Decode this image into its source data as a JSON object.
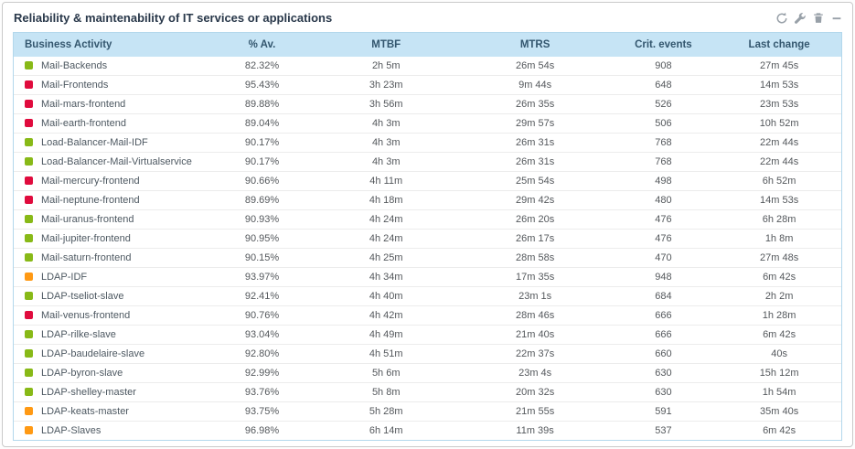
{
  "widget": {
    "title": "Reliability & maintenability of IT services or applications"
  },
  "status_colors": {
    "ok": "#88b917",
    "warning": "#ff9913",
    "critical": "#e00b3d"
  },
  "icon_color": "#98a0a8",
  "header_bg": "#c6e4f5",
  "table": {
    "columns": [
      {
        "key": "name",
        "label": "Business Activity"
      },
      {
        "key": "availability",
        "label": "% Av."
      },
      {
        "key": "mtbf",
        "label": "MTBF"
      },
      {
        "key": "mtrs",
        "label": "MTRS"
      },
      {
        "key": "crit_events",
        "label": "Crit. events"
      },
      {
        "key": "last_change",
        "label": "Last change"
      }
    ],
    "rows": [
      {
        "name": "Mail-Backends",
        "status": "ok",
        "availability": "82.32%",
        "mtbf": "2h 5m",
        "mtrs": "26m 54s",
        "crit_events": "908",
        "last_change": "27m 45s"
      },
      {
        "name": "Mail-Frontends",
        "status": "critical",
        "availability": "95.43%",
        "mtbf": "3h 23m",
        "mtrs": "9m 44s",
        "crit_events": "648",
        "last_change": "14m 53s"
      },
      {
        "name": "Mail-mars-frontend",
        "status": "critical",
        "availability": "89.88%",
        "mtbf": "3h 56m",
        "mtrs": "26m 35s",
        "crit_events": "526",
        "last_change": "23m 53s"
      },
      {
        "name": "Mail-earth-frontend",
        "status": "critical",
        "availability": "89.04%",
        "mtbf": "4h 3m",
        "mtrs": "29m 57s",
        "crit_events": "506",
        "last_change": "10h 52m"
      },
      {
        "name": "Load-Balancer-Mail-IDF",
        "status": "ok",
        "availability": "90.17%",
        "mtbf": "4h 3m",
        "mtrs": "26m 31s",
        "crit_events": "768",
        "last_change": "22m 44s"
      },
      {
        "name": "Load-Balancer-Mail-Virtualservice",
        "status": "ok",
        "availability": "90.17%",
        "mtbf": "4h 3m",
        "mtrs": "26m 31s",
        "crit_events": "768",
        "last_change": "22m 44s"
      },
      {
        "name": "Mail-mercury-frontend",
        "status": "critical",
        "availability": "90.66%",
        "mtbf": "4h 11m",
        "mtrs": "25m 54s",
        "crit_events": "498",
        "last_change": "6h 52m"
      },
      {
        "name": "Mail-neptune-frontend",
        "status": "critical",
        "availability": "89.69%",
        "mtbf": "4h 18m",
        "mtrs": "29m 42s",
        "crit_events": "480",
        "last_change": "14m 53s"
      },
      {
        "name": "Mail-uranus-frontend",
        "status": "ok",
        "availability": "90.93%",
        "mtbf": "4h 24m",
        "mtrs": "26m 20s",
        "crit_events": "476",
        "last_change": "6h 28m"
      },
      {
        "name": "Mail-jupiter-frontend",
        "status": "ok",
        "availability": "90.95%",
        "mtbf": "4h 24m",
        "mtrs": "26m 17s",
        "crit_events": "476",
        "last_change": "1h 8m"
      },
      {
        "name": "Mail-saturn-frontend",
        "status": "ok",
        "availability": "90.15%",
        "mtbf": "4h 25m",
        "mtrs": "28m 58s",
        "crit_events": "470",
        "last_change": "27m 48s"
      },
      {
        "name": "LDAP-IDF",
        "status": "warning",
        "availability": "93.97%",
        "mtbf": "4h 34m",
        "mtrs": "17m 35s",
        "crit_events": "948",
        "last_change": "6m 42s"
      },
      {
        "name": "LDAP-tseliot-slave",
        "status": "ok",
        "availability": "92.41%",
        "mtbf": "4h 40m",
        "mtrs": "23m 1s",
        "crit_events": "684",
        "last_change": "2h 2m"
      },
      {
        "name": "Mail-venus-frontend",
        "status": "critical",
        "availability": "90.76%",
        "mtbf": "4h 42m",
        "mtrs": "28m 46s",
        "crit_events": "666",
        "last_change": "1h 28m"
      },
      {
        "name": "LDAP-rilke-slave",
        "status": "ok",
        "availability": "93.04%",
        "mtbf": "4h 49m",
        "mtrs": "21m 40s",
        "crit_events": "666",
        "last_change": "6m 42s"
      },
      {
        "name": "LDAP-baudelaire-slave",
        "status": "ok",
        "availability": "92.80%",
        "mtbf": "4h 51m",
        "mtrs": "22m 37s",
        "crit_events": "660",
        "last_change": "40s"
      },
      {
        "name": "LDAP-byron-slave",
        "status": "ok",
        "availability": "92.99%",
        "mtbf": "5h 6m",
        "mtrs": "23m 4s",
        "crit_events": "630",
        "last_change": "15h 12m"
      },
      {
        "name": "LDAP-shelley-master",
        "status": "ok",
        "availability": "93.76%",
        "mtbf": "5h 8m",
        "mtrs": "20m 32s",
        "crit_events": "630",
        "last_change": "1h 54m"
      },
      {
        "name": "LDAP-keats-master",
        "status": "warning",
        "availability": "93.75%",
        "mtbf": "5h 28m",
        "mtrs": "21m 55s",
        "crit_events": "591",
        "last_change": "35m 40s"
      },
      {
        "name": "LDAP-Slaves",
        "status": "warning",
        "availability": "96.98%",
        "mtbf": "6h 14m",
        "mtrs": "11m 39s",
        "crit_events": "537",
        "last_change": "6m 42s"
      }
    ]
  }
}
